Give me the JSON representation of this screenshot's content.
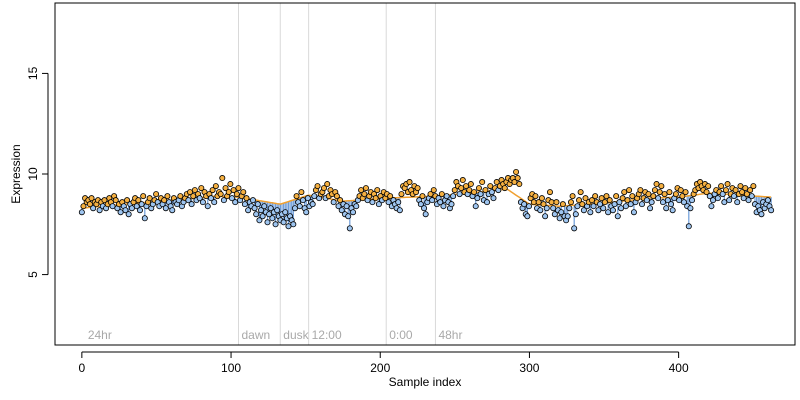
{
  "chart_data": {
    "type": "scatter",
    "title": "",
    "xlabel": "Sample index",
    "ylabel": "Expression",
    "xlim": [
      -18,
      478
    ],
    "ylim": [
      1.5,
      18.5
    ],
    "xticks": [
      0,
      100,
      200,
      300,
      400
    ],
    "xtick_labels": [
      "0",
      "100",
      "200",
      "300",
      "400"
    ],
    "yticks": [
      5,
      10,
      15
    ],
    "ytick_labels": [
      "5",
      "10",
      "15"
    ],
    "grid": false,
    "legend": "none",
    "colors": {
      "point_fill_high": "#f5b041",
      "point_fill_low": "#9ec5f0",
      "point_stroke": "#000000",
      "baseline_line": "#f0a030",
      "deviation_line": "#6b9bd8",
      "vertical_marker": "#d9d9d9",
      "annotation_text": "#a9a9a9"
    },
    "annotations": [
      {
        "label": "24hr",
        "x": 2
      },
      {
        "label": "dawn",
        "x": 105
      },
      {
        "label": "dusk",
        "x": 133
      },
      {
        "label": "12:00",
        "x": 152
      },
      {
        "label": "0:00",
        "x": 204
      },
      {
        "label": "48hr",
        "x": 237
      }
    ],
    "vertical_markers": [
      105,
      133,
      152,
      204,
      237
    ],
    "baseline": [
      {
        "x": 0,
        "y": 8.3
      },
      {
        "x": 20,
        "y": 8.45
      },
      {
        "x": 45,
        "y": 8.6
      },
      {
        "x": 70,
        "y": 8.75
      },
      {
        "x": 90,
        "y": 8.9
      },
      {
        "x": 105,
        "y": 8.85
      },
      {
        "x": 133,
        "y": 8.5
      },
      {
        "x": 152,
        "y": 8.95
      },
      {
        "x": 175,
        "y": 8.65
      },
      {
        "x": 204,
        "y": 8.8
      },
      {
        "x": 237,
        "y": 8.9
      },
      {
        "x": 260,
        "y": 9.05
      },
      {
        "x": 285,
        "y": 9.25
      },
      {
        "x": 300,
        "y": 8.5
      },
      {
        "x": 320,
        "y": 8.4
      },
      {
        "x": 350,
        "y": 8.55
      },
      {
        "x": 380,
        "y": 8.8
      },
      {
        "x": 400,
        "y": 8.85
      },
      {
        "x": 420,
        "y": 9.05
      },
      {
        "x": 462,
        "y": 8.85
      }
    ],
    "series": [
      {
        "y": [
          8.1,
          8.4,
          8.8,
          8.6,
          8.7,
          8.5,
          8.8,
          8.3,
          8.6,
          8.5,
          8.7,
          8.2,
          8.6,
          8.4,
          8.7,
          8.3,
          8.5,
          8.8,
          8.6,
          8.4,
          8.9,
          8.7,
          8.3,
          8.5,
          8.1,
          8.6,
          8.4,
          8.2,
          8.7,
          8.0,
          8.5,
          8.3,
          8.6,
          8.8,
          8.4,
          8.7,
          8.2,
          8.5,
          8.9,
          7.8,
          8.4,
          8.6,
          8.8,
          8.3,
          8.5,
          8.7,
          9.0,
          8.6,
          8.4,
          8.8,
          8.5,
          8.7,
          8.3,
          8.9,
          8.6,
          8.4,
          8.2,
          8.8,
          8.6,
          8.5,
          8.7,
          8.9,
          8.4,
          8.6,
          8.8,
          9.0,
          8.7,
          9.1,
          8.5,
          8.9,
          9.2,
          8.7,
          9.0,
          8.8,
          9.3,
          8.6,
          9.1,
          8.9,
          8.4,
          9.0,
          8.8,
          9.2,
          8.6,
          9.4,
          8.9,
          9.1,
          9.0,
          9.8,
          8.7,
          9.3,
          8.9,
          9.1,
          9.5,
          8.8,
          9.2,
          8.6,
          9.0,
          9.3,
          8.7,
          8.9,
          9.1,
          8.5,
          8.8,
          8.2,
          8.6,
          8.4,
          8.7,
          8.3,
          8.0,
          8.5,
          7.7,
          8.2,
          7.9,
          8.4,
          8.1,
          7.6,
          8.0,
          8.3,
          7.8,
          8.1,
          7.5,
          8.2,
          7.9,
          7.7,
          8.0,
          7.6,
          8.1,
          7.8,
          7.4,
          7.9,
          7.7,
          7.5,
          8.3,
          8.9,
          8.6,
          8.4,
          9.1,
          8.7,
          8.3,
          8.1,
          8.8,
          8.4,
          8.6,
          8.5,
          8.9,
          9.2,
          9.4,
          8.8,
          9.0,
          9.1,
          9.3,
          8.8,
          9.5,
          8.9,
          9.2,
          9.0,
          8.6,
          9.1,
          8.9,
          8.4,
          8.7,
          8.2,
          8.5,
          8.0,
          8.4,
          7.9,
          7.3,
          8.3,
          8.1,
          8.5,
          8.4,
          8.7,
          8.9,
          9.2,
          8.8,
          9.0,
          9.3,
          8.7,
          8.9,
          9.1,
          8.6,
          9.0,
          8.8,
          9.2,
          8.5,
          8.9,
          8.7,
          9.1,
          8.8,
          9.0,
          8.6,
          8.9,
          8.4,
          8.7,
          8.5,
          8.3,
          8.6,
          8.2,
          9.0,
          9.4,
          9.3,
          9.5,
          9.1,
          9.6,
          9.2,
          9.0,
          9.4,
          9.1,
          9.3,
          8.7,
          8.5,
          8.9,
          8.3,
          8.0,
          8.6,
          8.8,
          9.0,
          8.7,
          9.2,
          8.9,
          8.5,
          8.8,
          8.6,
          9.0,
          8.4,
          8.7,
          8.9,
          8.6,
          8.3,
          8.5,
          8.9,
          9.2,
          9.6,
          9.4,
          9.0,
          9.3,
          9.7,
          9.1,
          9.4,
          9.0,
          9.2,
          9.5,
          8.9,
          9.1,
          8.4,
          8.8,
          9.3,
          9.0,
          9.6,
          8.7,
          9.2,
          8.6,
          9.0,
          9.4,
          9.1,
          8.8,
          9.3,
          9.6,
          9.2,
          9.4,
          9.7,
          9.5,
          9.3,
          9.6,
          9.8,
          9.5,
          9.7,
          9.8,
          9.6,
          10.1,
          9.8,
          9.5,
          8.6,
          8.3,
          8.5,
          8.0,
          7.9,
          8.4,
          8.8,
          9.0,
          8.6,
          8.9,
          8.3,
          8.6,
          8.2,
          8.8,
          8.5,
          7.9,
          8.3,
          8.7,
          9.1,
          8.6,
          8.3,
          8.0,
          8.6,
          8.2,
          7.8,
          8.1,
          8.5,
          7.9,
          7.7,
          7.9,
          8.3,
          8.6,
          8.9,
          7.3,
          8.0,
          8.4,
          8.7,
          9.1,
          8.5,
          8.2,
          8.8,
          8.4,
          8.6,
          8.1,
          8.7,
          8.4,
          8.9,
          8.6,
          8.2,
          8.5,
          8.8,
          8.3,
          8.6,
          8.9,
          8.1,
          8.7,
          8.4,
          8.2,
          8.5,
          8.9,
          7.9,
          8.6,
          8.3,
          8.8,
          9.1,
          8.4,
          8.7,
          9.2,
          8.5,
          8.9,
          8.1,
          8.6,
          8.8,
          9.0,
          9.2,
          8.5,
          8.8,
          9.1,
          8.7,
          9.0,
          8.3,
          8.6,
          8.9,
          9.2,
          9.5,
          8.8,
          9.1,
          9.4,
          8.6,
          9.0,
          8.3,
          8.7,
          9.1,
          8.5,
          8.2,
          8.8,
          9.0,
          9.3,
          8.7,
          9.2,
          8.9,
          8.6,
          9.1,
          8.4,
          7.4,
          8.3,
          8.7,
          9.0,
          9.2,
          9.5,
          9.3,
          9.6,
          9.4,
          9.2,
          9.5,
          9.1,
          9.4,
          8.9,
          8.4,
          8.7,
          9.0,
          9.2,
          8.8,
          9.1,
          9.4,
          9.0,
          8.6,
          9.2,
          9.5,
          8.7,
          9.0,
          9.3,
          8.9,
          9.2,
          8.6,
          9.0,
          9.4,
          9.1,
          8.8,
          9.3,
          9.0,
          8.7,
          9.2,
          8.9,
          9.4,
          8.5,
          8.1,
          8.4,
          8.2,
          8.0,
          8.6,
          8.3,
          8.5,
          8.7,
          8.4,
          8.2
        ]
      }
    ]
  }
}
